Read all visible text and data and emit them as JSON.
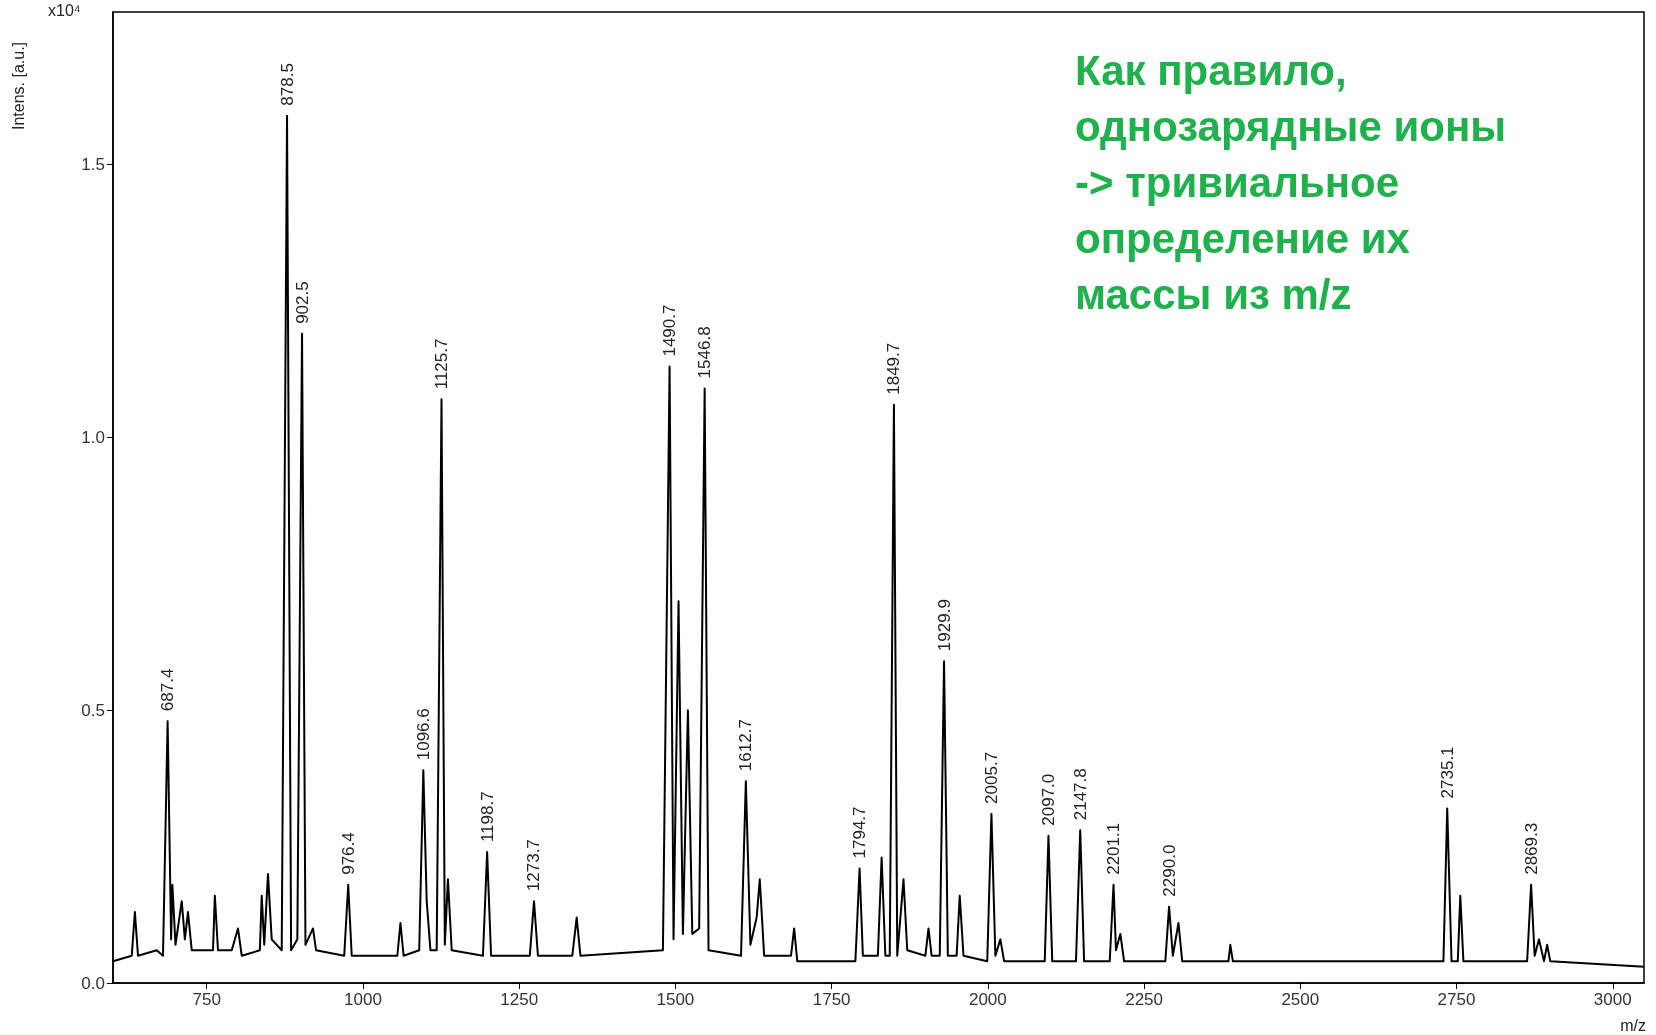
{
  "chart_data": {
    "type": "line",
    "xlabel": "m/z",
    "ylabel": "Intens. [a.u.]",
    "annotations": [
      "x10⁴",
      "Как правило,\nоднозарядные ионы\n-> тривиальное\nопределение их\nмассы из m/z",
      {
        "text": "687.4",
        "x": 687.4,
        "y": 0.48
      },
      {
        "text": "878.5",
        "x": 878.5,
        "y": 1.59
      },
      {
        "text": "902.5",
        "x": 902.5,
        "y": 1.19
      },
      {
        "text": "976.4",
        "x": 976.4,
        "y": 0.18
      },
      {
        "text": "1096.6",
        "x": 1096.6,
        "y": 0.39
      },
      {
        "text": "1125.7",
        "x": 1125.7,
        "y": 1.07
      },
      {
        "text": "1198.7",
        "x": 1198.7,
        "y": 0.24
      },
      {
        "text": "1273.7",
        "x": 1273.7,
        "y": 0.15
      },
      {
        "text": "1490.7",
        "x": 1490.7,
        "y": 1.13
      },
      {
        "text": "1546.8",
        "x": 1546.8,
        "y": 1.09
      },
      {
        "text": "1612.7",
        "x": 1612.7,
        "y": 0.37
      },
      {
        "text": "1794.7",
        "x": 1794.7,
        "y": 0.21
      },
      {
        "text": "1849.7",
        "x": 1849.7,
        "y": 1.06
      },
      {
        "text": "1929.9",
        "x": 1929.9,
        "y": 0.59
      },
      {
        "text": "2005.7",
        "x": 2005.7,
        "y": 0.31
      },
      {
        "text": "2097.0",
        "x": 2097.0,
        "y": 0.27
      },
      {
        "text": "2147.8",
        "x": 2147.8,
        "y": 0.28
      },
      {
        "text": "2201.1",
        "x": 2201.1,
        "y": 0.18
      },
      {
        "text": "2290.0",
        "x": 2290.0,
        "y": 0.14
      },
      {
        "text": "2735.1",
        "x": 2735.1,
        "y": 0.32
      },
      {
        "text": "2869.3",
        "x": 2869.3,
        "y": 0.18
      }
    ],
    "xlim": [
      600,
      3050
    ],
    "xticks": [
      750,
      1000,
      1250,
      1500,
      1750,
      2000,
      2250,
      2500,
      2750,
      3000
    ],
    "ylim": [
      0,
      1.78
    ],
    "yticks": [
      {
        "value": 0,
        "label": "0.0"
      },
      {
        "value": 0.5,
        "label": "0.5"
      },
      {
        "value": 1,
        "label": "1.0"
      },
      {
        "value": 1.5,
        "label": "1.5"
      }
    ],
    "series": [
      {
        "color": "#000000",
        "x": [
          600,
          630,
          635,
          640,
          670,
          680,
          687.4,
          693,
          695,
          700,
          710,
          715,
          720,
          726,
          760,
          763,
          768,
          790,
          800,
          806,
          835,
          838,
          842,
          848,
          854,
          870,
          878.5,
          885,
          895,
          902.5,
          908,
          920,
          925,
          970,
          976.4,
          982,
          1055,
          1060,
          1065,
          1090,
          1096.6,
          1102,
          1108,
          1118,
          1125.7,
          1131,
          1136,
          1142,
          1192,
          1198.7,
          1205,
          1267,
          1273.7,
          1280,
          1335,
          1342,
          1348,
          1480,
          1490.7,
          1497,
          1505,
          1512,
          1520,
          1527,
          1538,
          1546.8,
          1553,
          1605,
          1612.7,
          1620,
          1630,
          1635,
          1642,
          1685,
          1690,
          1695,
          1788,
          1794.7,
          1800,
          1824,
          1830,
          1836,
          1843,
          1849.7,
          1855,
          1865,
          1871,
          1900,
          1905,
          1910,
          1923,
          1929.9,
          1936,
          1950,
          1955,
          1961,
          1999,
          2005.7,
          2012,
          2020,
          2026,
          2091,
          2097.0,
          2103,
          2141,
          2147.8,
          2154,
          2195,
          2201.1,
          2205,
          2212,
          2218,
          2284,
          2290,
          2296,
          2305,
          2311,
          2385,
          2388,
          2392,
          2500,
          2729,
          2735.1,
          2742,
          2752,
          2756,
          2761,
          2863,
          2869.3,
          2875,
          2882,
          2890,
          2895,
          2900,
          3050
        ],
        "values": [
          0.04,
          0.05,
          0.13,
          0.05,
          0.06,
          0.05,
          0.48,
          0.08,
          0.18,
          0.07,
          0.15,
          0.08,
          0.13,
          0.06,
          0.06,
          0.16,
          0.06,
          0.06,
          0.1,
          0.05,
          0.06,
          0.16,
          0.07,
          0.2,
          0.08,
          0.06,
          1.59,
          0.06,
          0.08,
          1.19,
          0.07,
          0.1,
          0.06,
          0.05,
          0.18,
          0.05,
          0.05,
          0.11,
          0.05,
          0.06,
          0.39,
          0.15,
          0.06,
          0.06,
          1.07,
          0.07,
          0.19,
          0.06,
          0.05,
          0.24,
          0.05,
          0.05,
          0.15,
          0.05,
          0.05,
          0.12,
          0.05,
          0.06,
          1.13,
          0.08,
          0.7,
          0.09,
          0.5,
          0.09,
          0.1,
          1.09,
          0.06,
          0.05,
          0.37,
          0.07,
          0.12,
          0.19,
          0.05,
          0.05,
          0.1,
          0.04,
          0.04,
          0.21,
          0.05,
          0.05,
          0.23,
          0.05,
          0.05,
          1.06,
          0.05,
          0.19,
          0.06,
          0.05,
          0.1,
          0.05,
          0.05,
          0.59,
          0.05,
          0.05,
          0.16,
          0.05,
          0.04,
          0.31,
          0.05,
          0.08,
          0.04,
          0.04,
          0.27,
          0.04,
          0.04,
          0.28,
          0.04,
          0.04,
          0.18,
          0.06,
          0.09,
          0.04,
          0.04,
          0.14,
          0.05,
          0.11,
          0.04,
          0.04,
          0.07,
          0.04,
          0.04,
          0.04,
          0.32,
          0.04,
          0.04,
          0.16,
          0.04,
          0.04,
          0.18,
          0.05,
          0.08,
          0.04,
          0.07,
          0.04,
          0.03
        ]
      }
    ]
  }
}
